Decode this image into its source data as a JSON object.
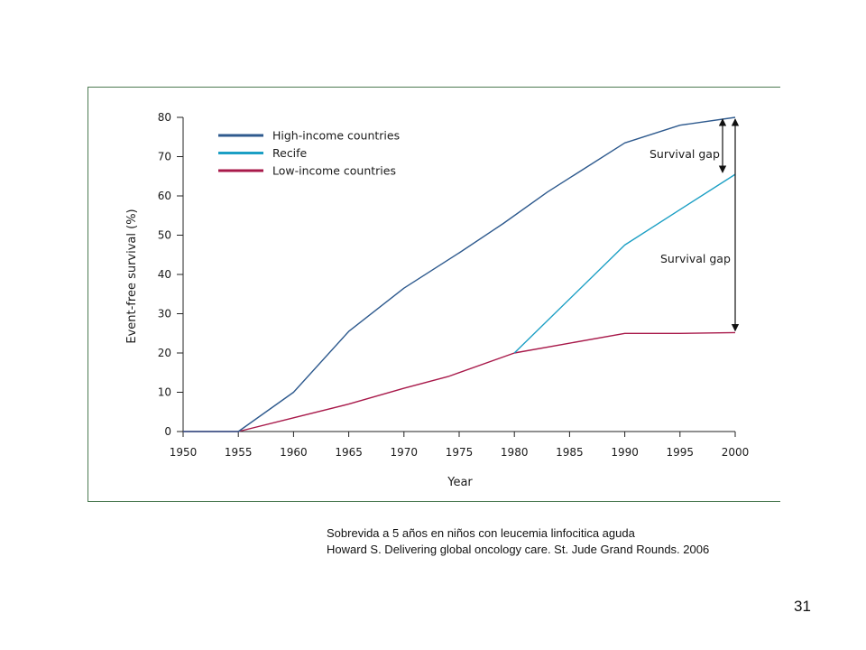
{
  "chart_data": {
    "type": "line",
    "xlabel": "Year",
    "ylabel": "Event-free survival (%)",
    "xlim": [
      1950,
      2000
    ],
    "ylim": [
      0,
      80
    ],
    "x_ticks": [
      1950,
      1955,
      1960,
      1965,
      1970,
      1975,
      1980,
      1985,
      1990,
      1995,
      2000
    ],
    "y_ticks": [
      0,
      10,
      20,
      30,
      40,
      50,
      60,
      70,
      80
    ],
    "grid": false,
    "legend_position": "top-left",
    "series": [
      {
        "name": "High-income countries",
        "color": "#2e5a8e",
        "points": [
          [
            1950,
            0
          ],
          [
            1955,
            0
          ],
          [
            1960,
            10
          ],
          [
            1965,
            25.5
          ],
          [
            1970,
            36.5
          ],
          [
            1975,
            45.5
          ],
          [
            1979,
            53
          ],
          [
            1983,
            61
          ],
          [
            1990,
            73.5
          ],
          [
            1995,
            78
          ],
          [
            2000,
            80
          ]
        ]
      },
      {
        "name": "Recife",
        "color": "#1c9fc4",
        "points": [
          [
            1980,
            20
          ],
          [
            1990,
            47.5
          ],
          [
            1995,
            56.5
          ],
          [
            2000,
            65.5
          ]
        ]
      },
      {
        "name": "Low-income countries",
        "color": "#a8194a",
        "points": [
          [
            1950,
            0
          ],
          [
            1955,
            0
          ],
          [
            1960,
            3.5
          ],
          [
            1965,
            7
          ],
          [
            1970,
            11
          ],
          [
            1974,
            14
          ],
          [
            1980,
            20
          ],
          [
            1990,
            25
          ],
          [
            1995,
            25
          ],
          [
            2000,
            25.2
          ]
        ]
      }
    ],
    "annotations": [
      {
        "label": "Survival gap",
        "x": 2000,
        "y_from": 80,
        "y_to": 65.5
      },
      {
        "label": "Survival gap",
        "x": 2000,
        "y_from": 80,
        "y_to": 25.2
      }
    ]
  },
  "caption": {
    "line1": "Sobrevida a 5 años en niños con leucemia linfocitica aguda",
    "line2": "Howard S. Delivering global oncology care. St. Jude Grand Rounds. 2006"
  },
  "slide_number": "31"
}
